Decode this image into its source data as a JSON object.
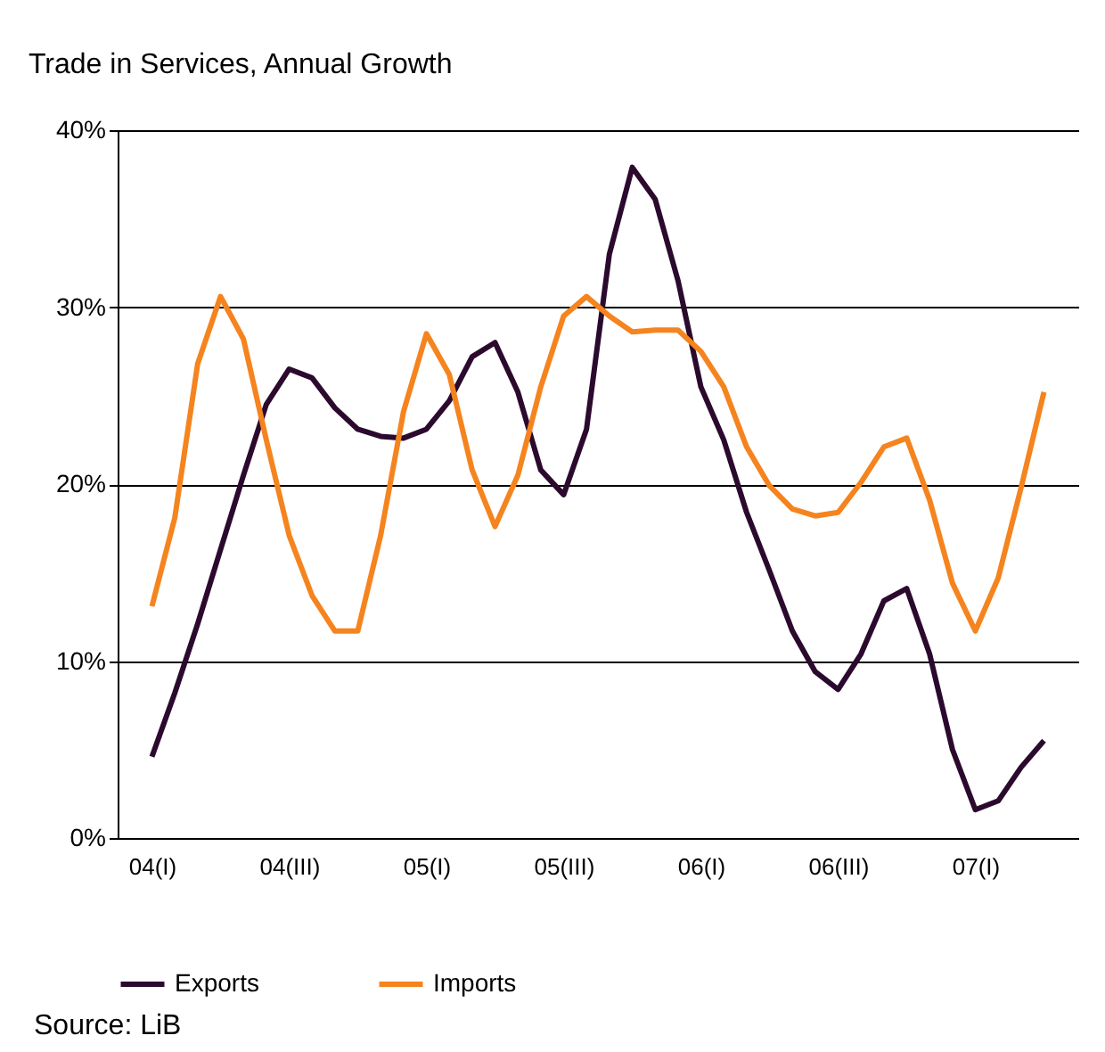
{
  "chart_data": {
    "type": "line",
    "title": "Trade in Services, Annual Growth",
    "categories": [
      null,
      "04(I)",
      null,
      null,
      null,
      null,
      null,
      "04(III)",
      null,
      null,
      null,
      null,
      null,
      "05(I)",
      null,
      null,
      null,
      null,
      null,
      "05(III)",
      null,
      null,
      null,
      null,
      null,
      "06(I)",
      null,
      null,
      null,
      null,
      null,
      "06(III)",
      null,
      null,
      null,
      null,
      null,
      "07(I)",
      null,
      null,
      null,
      null
    ],
    "series": [
      {
        "name": "Exports",
        "color": "#2b0a2e",
        "values": [
          null,
          4.6,
          8.2,
          12.1,
          16.3,
          20.5,
          24.5,
          26.5,
          26.0,
          24.3,
          23.1,
          22.7,
          22.6,
          23.1,
          24.7,
          27.2,
          28.0,
          25.2,
          20.8,
          19.4,
          23.1,
          33.0,
          37.9,
          36.1,
          31.5,
          25.5,
          22.5,
          18.4,
          15.1,
          11.7,
          9.4,
          8.4,
          10.4,
          13.4,
          14.1,
          10.4,
          5.0,
          1.6,
          2.1,
          4.0,
          5.5,
          null
        ]
      },
      {
        "name": "Imports",
        "color": "#f5841f",
        "values": [
          null,
          13.1,
          18.1,
          26.8,
          30.6,
          28.2,
          22.5,
          17.1,
          13.7,
          11.7,
          11.7,
          17.1,
          24.1,
          28.5,
          26.2,
          20.8,
          17.6,
          20.5,
          25.5,
          29.5,
          30.6,
          29.5,
          28.6,
          28.7,
          28.7,
          27.5,
          25.5,
          22.1,
          19.9,
          18.6,
          18.2,
          18.4,
          20.1,
          22.1,
          22.6,
          19.1,
          14.4,
          11.7,
          14.7,
          19.8,
          25.2,
          null
        ]
      }
    ],
    "ylim": [
      0,
      40
    ],
    "yticks": [
      {
        "value": 0,
        "label": "0%"
      },
      {
        "value": 10,
        "label": "10%"
      },
      {
        "value": 20,
        "label": "20%"
      },
      {
        "value": 30,
        "label": "30%"
      },
      {
        "value": 40,
        "label": "40%"
      }
    ],
    "grid": "y",
    "legend": "bottom",
    "marker": "none",
    "line_style": "solid",
    "annotations": [
      "Source: LiB"
    ]
  }
}
